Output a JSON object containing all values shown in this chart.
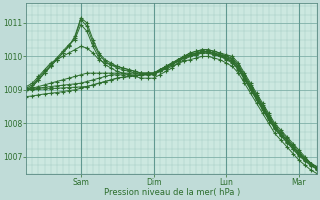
{
  "background_color": "#c0dcd8",
  "plot_bg_color": "#cce8e0",
  "grid_color": "#a0c8c0",
  "line_color": "#2d6e2d",
  "marker_color": "#2d6e2d",
  "ylabel_values": [
    1007,
    1008,
    1009,
    1010,
    1011
  ],
  "xlabel": "Pression niveau de la mer( hPa )",
  "x_tick_labels": [
    "Sam",
    "Dim",
    "Lun",
    "Mar"
  ],
  "ylim": [
    1006.5,
    1011.6
  ],
  "xlim": [
    0.0,
    96.0
  ],
  "x_tick_positions": [
    18,
    42,
    66,
    90
  ],
  "series": [
    {
      "x": [
        0,
        2,
        4,
        6,
        8,
        10,
        12,
        14,
        16,
        18,
        20,
        22,
        24,
        26,
        28,
        30,
        32,
        34,
        36,
        38,
        40,
        42,
        44,
        46,
        48,
        50,
        52,
        54,
        56,
        58,
        60,
        62,
        64,
        66,
        68,
        70,
        72,
        74,
        76,
        78,
        80,
        82,
        84,
        86,
        88,
        90,
        92,
        94,
        96
      ],
      "y": [
        1009.0,
        1009.1,
        1009.3,
        1009.5,
        1009.7,
        1009.9,
        1010.1,
        1010.3,
        1010.6,
        1011.15,
        1011.0,
        1010.5,
        1010.1,
        1009.9,
        1009.8,
        1009.7,
        1009.65,
        1009.6,
        1009.55,
        1009.5,
        1009.5,
        1009.5,
        1009.6,
        1009.7,
        1009.8,
        1009.9,
        1010.0,
        1010.1,
        1010.15,
        1010.2,
        1010.2,
        1010.15,
        1010.1,
        1010.05,
        1010.0,
        1009.8,
        1009.5,
        1009.2,
        1008.9,
        1008.6,
        1008.3,
        1008.0,
        1007.8,
        1007.6,
        1007.4,
        1007.2,
        1007.0,
        1006.8,
        1006.6
      ]
    },
    {
      "x": [
        0,
        2,
        4,
        6,
        8,
        10,
        12,
        14,
        16,
        18,
        20,
        22,
        24,
        26,
        28,
        30,
        32,
        34,
        36,
        38,
        40,
        42,
        44,
        46,
        48,
        50,
        52,
        54,
        56,
        58,
        60,
        62,
        64,
        66,
        68,
        70,
        72,
        74,
        76,
        78,
        80,
        82,
        84,
        86,
        88,
        90,
        92,
        94,
        96
      ],
      "y": [
        1009.0,
        1009.1,
        1009.3,
        1009.5,
        1009.7,
        1009.9,
        1010.1,
        1010.3,
        1010.55,
        1011.1,
        1010.9,
        1010.4,
        1010.05,
        1009.85,
        1009.75,
        1009.65,
        1009.6,
        1009.55,
        1009.5,
        1009.45,
        1009.45,
        1009.45,
        1009.55,
        1009.65,
        1009.75,
        1009.85,
        1009.95,
        1010.05,
        1010.1,
        1010.15,
        1010.15,
        1010.1,
        1010.05,
        1010.0,
        1009.95,
        1009.75,
        1009.45,
        1009.15,
        1008.85,
        1008.55,
        1008.25,
        1007.95,
        1007.75,
        1007.55,
        1007.35,
        1007.15,
        1006.95,
        1006.8,
        1006.7
      ]
    },
    {
      "x": [
        0,
        2,
        4,
        6,
        8,
        10,
        12,
        14,
        16,
        18,
        20,
        22,
        24,
        26,
        28,
        30,
        32,
        34,
        36,
        38,
        40,
        42,
        44,
        46,
        48,
        50,
        52,
        54,
        56,
        58,
        60,
        62,
        64,
        66,
        68,
        70,
        72,
        74,
        76,
        78,
        80,
        82,
        84,
        86,
        88,
        90,
        92,
        94,
        96
      ],
      "y": [
        1009.05,
        1009.15,
        1009.35,
        1009.55,
        1009.75,
        1009.95,
        1010.15,
        1010.35,
        1010.5,
        1010.95,
        1010.75,
        1010.3,
        1009.95,
        1009.75,
        1009.65,
        1009.55,
        1009.5,
        1009.45,
        1009.4,
        1009.35,
        1009.35,
        1009.35,
        1009.45,
        1009.55,
        1009.65,
        1009.8,
        1009.9,
        1010.0,
        1010.05,
        1010.1,
        1010.1,
        1010.05,
        1010.0,
        1009.95,
        1009.9,
        1009.7,
        1009.4,
        1009.1,
        1008.8,
        1008.5,
        1008.2,
        1007.9,
        1007.7,
        1007.5,
        1007.3,
        1007.1,
        1006.9,
        1006.75,
        1006.65
      ]
    },
    {
      "x": [
        0,
        2,
        4,
        6,
        8,
        10,
        12,
        14,
        16,
        18,
        20,
        22,
        24,
        26,
        28,
        30,
        32,
        34,
        36,
        38,
        40,
        42,
        44,
        46,
        48,
        50,
        52,
        54,
        56,
        58,
        60,
        62,
        64,
        66,
        68,
        70,
        72,
        74,
        76,
        78,
        80,
        82,
        84,
        86,
        88,
        90,
        92,
        94,
        96
      ],
      "y": [
        1009.1,
        1009.2,
        1009.4,
        1009.6,
        1009.8,
        1009.9,
        1010.0,
        1010.1,
        1010.2,
        1010.3,
        1010.25,
        1010.1,
        1009.9,
        1009.8,
        1009.75,
        1009.7,
        1009.65,
        1009.6,
        1009.55,
        1009.5,
        1009.5,
        1009.5,
        1009.55,
        1009.65,
        1009.75,
        1009.85,
        1009.95,
        1010.0,
        1010.05,
        1010.1,
        1010.1,
        1010.05,
        1010.0,
        1009.9,
        1009.8,
        1009.6,
        1009.3,
        1009.0,
        1008.7,
        1008.4,
        1008.1,
        1007.85,
        1007.65,
        1007.45,
        1007.3,
        1007.1,
        1006.95,
        1006.8,
        1006.7
      ]
    },
    {
      "x": [
        0,
        2,
        4,
        6,
        8,
        10,
        12,
        14,
        16,
        18,
        20,
        22,
        24,
        26,
        28,
        30,
        32,
        34,
        36,
        38,
        40,
        42,
        44,
        46,
        48,
        50,
        52,
        54,
        56,
        58,
        60,
        62,
        64,
        66,
        68,
        70,
        72,
        74,
        76,
        78,
        80,
        82,
        84,
        86,
        88,
        90,
        92,
        94,
        96
      ],
      "y": [
        1009.0,
        1009.05,
        1009.1,
        1009.15,
        1009.2,
        1009.25,
        1009.3,
        1009.35,
        1009.4,
        1009.45,
        1009.5,
        1009.5,
        1009.5,
        1009.5,
        1009.5,
        1009.5,
        1009.5,
        1009.5,
        1009.5,
        1009.5,
        1009.5,
        1009.5,
        1009.6,
        1009.7,
        1009.8,
        1009.9,
        1010.0,
        1010.1,
        1010.15,
        1010.2,
        1010.2,
        1010.15,
        1010.1,
        1010.0,
        1009.9,
        1009.7,
        1009.4,
        1009.1,
        1008.8,
        1008.5,
        1008.2,
        1007.9,
        1007.7,
        1007.5,
        1007.3,
        1007.1,
        1006.95,
        1006.8,
        1006.7
      ]
    },
    {
      "x": [
        0,
        2,
        4,
        6,
        8,
        10,
        12,
        14,
        16,
        18,
        20,
        22,
        24,
        26,
        28,
        30,
        32,
        34,
        36,
        38,
        40,
        42,
        44,
        46,
        48,
        50,
        52,
        54,
        56,
        58,
        60,
        62,
        64,
        66,
        68,
        70,
        72,
        74,
        76,
        78,
        80,
        82,
        84,
        86,
        88,
        90,
        92,
        94,
        96
      ],
      "y": [
        1009.0,
        1009.02,
        1009.05,
        1009.08,
        1009.1,
        1009.12,
        1009.14,
        1009.16,
        1009.18,
        1009.2,
        1009.25,
        1009.3,
        1009.35,
        1009.4,
        1009.45,
        1009.45,
        1009.45,
        1009.45,
        1009.45,
        1009.45,
        1009.5,
        1009.5,
        1009.6,
        1009.7,
        1009.8,
        1009.9,
        1010.0,
        1010.05,
        1010.1,
        1010.15,
        1010.15,
        1010.1,
        1010.05,
        1009.95,
        1009.85,
        1009.65,
        1009.35,
        1009.05,
        1008.75,
        1008.45,
        1008.15,
        1007.85,
        1007.65,
        1007.45,
        1007.25,
        1007.05,
        1006.9,
        1006.75,
        1006.65
      ]
    },
    {
      "x": [
        0,
        2,
        4,
        6,
        8,
        10,
        12,
        14,
        16,
        18,
        20,
        22,
        24,
        26,
        28,
        30,
        32,
        34,
        36,
        38,
        40,
        42,
        44,
        46,
        48,
        50,
        52,
        54,
        56,
        58,
        60,
        62,
        64,
        66,
        68,
        70,
        72,
        74,
        76,
        78,
        80,
        82,
        84,
        86,
        88,
        90,
        92,
        94,
        96
      ],
      "y": [
        1009.0,
        1009.01,
        1009.02,
        1009.03,
        1009.04,
        1009.05,
        1009.06,
        1009.07,
        1009.08,
        1009.09,
        1009.1,
        1009.15,
        1009.2,
        1009.25,
        1009.3,
        1009.35,
        1009.38,
        1009.4,
        1009.42,
        1009.44,
        1009.46,
        1009.48,
        1009.58,
        1009.68,
        1009.78,
        1009.88,
        1009.98,
        1010.03,
        1010.08,
        1010.13,
        1010.13,
        1010.08,
        1010.03,
        1009.93,
        1009.83,
        1009.63,
        1009.33,
        1009.03,
        1008.73,
        1008.43,
        1008.13,
        1007.83,
        1007.63,
        1007.43,
        1007.23,
        1007.03,
        1006.88,
        1006.73,
        1006.63
      ]
    },
    {
      "x": [
        0,
        2,
        4,
        6,
        8,
        10,
        12,
        14,
        16,
        18,
        20,
        22,
        24,
        26,
        28,
        30,
        32,
        34,
        36,
        38,
        40,
        42,
        44,
        46,
        48,
        50,
        52,
        54,
        56,
        58,
        60,
        62,
        64,
        66,
        68,
        70,
        72,
        74,
        76,
        78,
        80,
        82,
        84,
        86,
        88,
        90,
        92,
        94,
        96
      ],
      "y": [
        1008.8,
        1008.82,
        1008.85,
        1008.88,
        1008.9,
        1008.92,
        1008.95,
        1008.98,
        1009.0,
        1009.05,
        1009.1,
        1009.15,
        1009.2,
        1009.25,
        1009.3,
        1009.35,
        1009.38,
        1009.4,
        1009.42,
        1009.44,
        1009.46,
        1009.48,
        1009.55,
        1009.62,
        1009.7,
        1009.78,
        1009.86,
        1009.9,
        1009.95,
        1010.0,
        1010.0,
        1009.95,
        1009.9,
        1009.8,
        1009.7,
        1009.5,
        1009.2,
        1008.9,
        1008.6,
        1008.3,
        1008.0,
        1007.7,
        1007.5,
        1007.3,
        1007.1,
        1006.9,
        1006.75,
        1006.6,
        1006.5
      ]
    }
  ]
}
